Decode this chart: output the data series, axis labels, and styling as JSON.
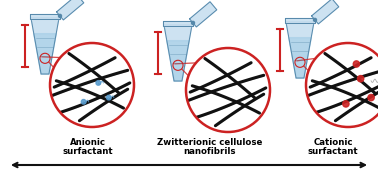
{
  "bg_color": "#ffffff",
  "tube_color": "#c8dff0",
  "tube_outline": "#5588aa",
  "liquid_color": "#a8d0e8",
  "circle_color": "#cc2222",
  "fibrils_color": "#111111",
  "arrow_color": "#111111",
  "red_bracket_color": "#cc2222",
  "dot_color_blue": "#5599cc",
  "dot_color_red": "#cc2222",
  "labels": {
    "left": [
      "Anionic",
      "surfactant"
    ],
    "center": [
      "Zwitterionic cellulose",
      "nanofibrils"
    ],
    "right": [
      "Cationic",
      "surfactant"
    ]
  },
  "fig_width": 3.78,
  "fig_height": 1.73,
  "dpi": 100
}
